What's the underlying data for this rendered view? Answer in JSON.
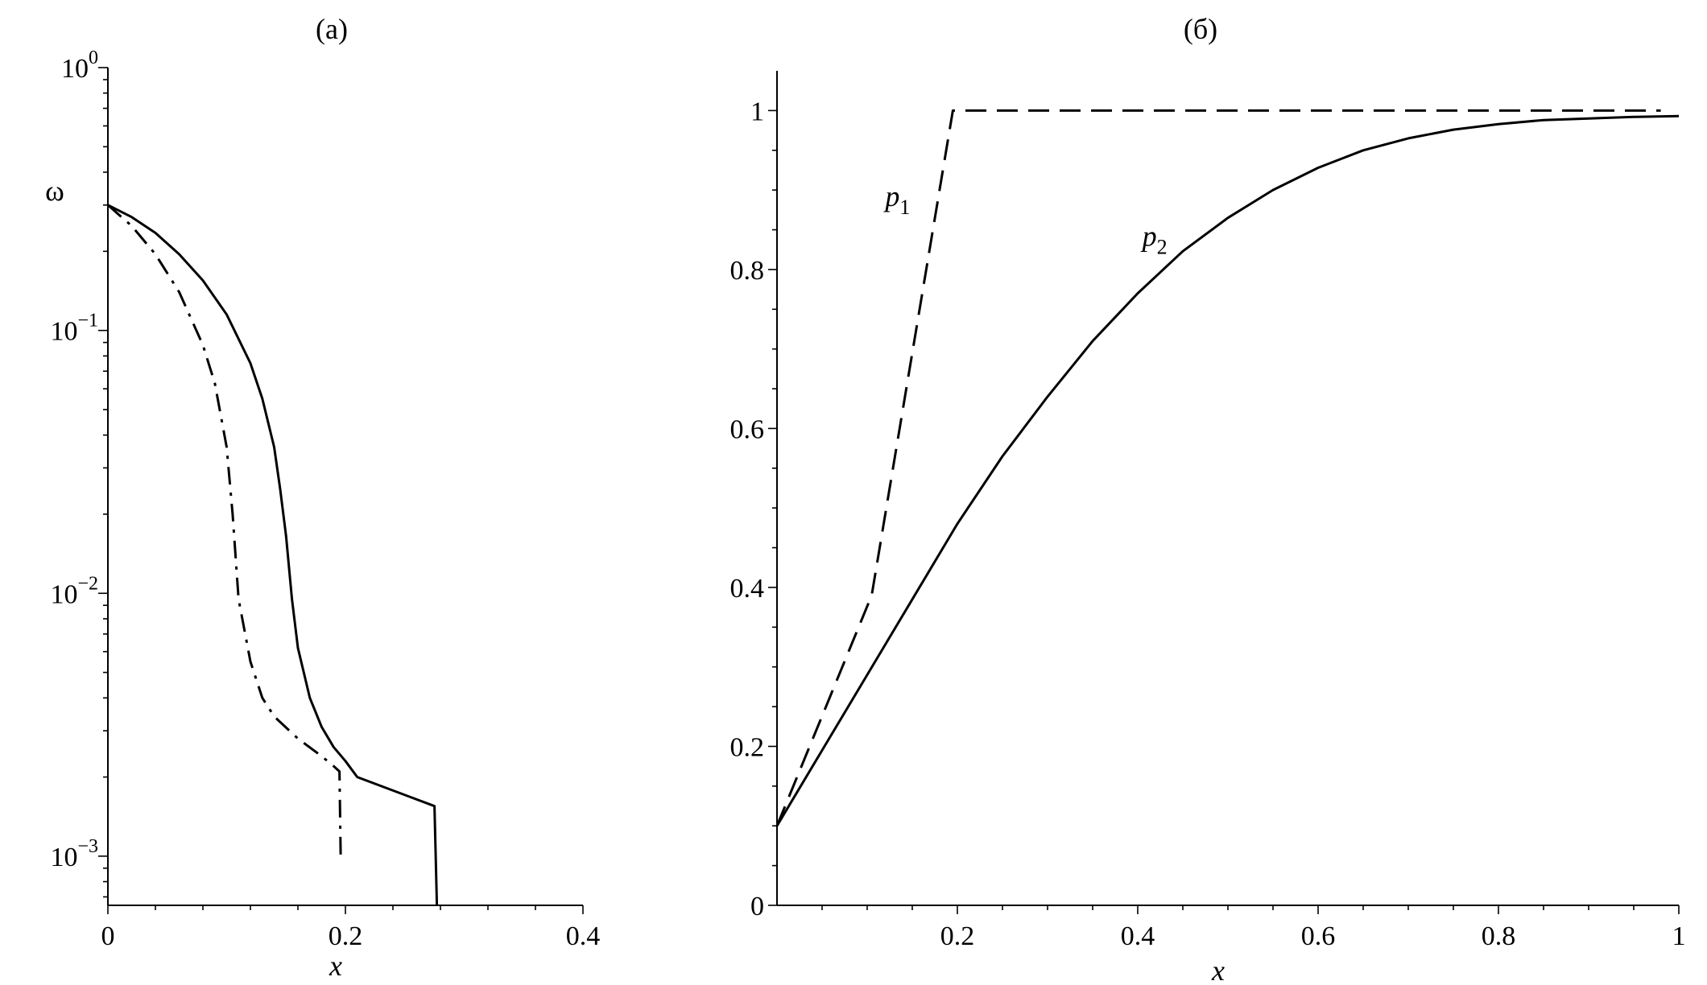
{
  "chart_data": [
    {
      "id": "a",
      "panel_label": "(a)",
      "type": "line",
      "xlabel": "x",
      "ylabel": "ω",
      "yscale": "log",
      "xlim": [
        0,
        0.4
      ],
      "ylim": [
        0.00065,
        1
      ],
      "xticks": [
        {
          "value": 0,
          "label": "0"
        },
        {
          "value": 0.2,
          "label": "0.2"
        },
        {
          "value": 0.4,
          "label": "0.4"
        }
      ],
      "xminor": [
        0.04,
        0.08,
        0.12,
        0.16,
        0.24,
        0.28,
        0.32,
        0.36
      ],
      "yticks": [
        {
          "value": 1,
          "base": "10",
          "exp": "0"
        },
        {
          "value": 0.1,
          "base": "10",
          "exp": "−1"
        },
        {
          "value": 0.01,
          "base": "10",
          "exp": "−2"
        },
        {
          "value": 0.001,
          "base": "10",
          "exp": "−3"
        }
      ],
      "series": [
        {
          "style": "solid",
          "x": [
            0,
            0.02,
            0.04,
            0.06,
            0.08,
            0.1,
            0.12,
            0.13,
            0.14,
            0.145,
            0.15,
            0.155,
            0.16,
            0.17,
            0.18,
            0.19,
            0.2,
            0.21,
            0.275,
            0.277
          ],
          "y": [
            0.3,
            0.27,
            0.235,
            0.195,
            0.155,
            0.115,
            0.075,
            0.055,
            0.036,
            0.025,
            0.0165,
            0.0095,
            0.0062,
            0.004,
            0.0031,
            0.0026,
            0.0023,
            0.002,
            0.00155,
            0.00065
          ]
        },
        {
          "style": "dashdot",
          "x": [
            0,
            0.02,
            0.04,
            0.06,
            0.08,
            0.09,
            0.1,
            0.105,
            0.11,
            0.12,
            0.13,
            0.14,
            0.16,
            0.18,
            0.19,
            0.195,
            0.196
          ],
          "y": [
            0.3,
            0.25,
            0.195,
            0.14,
            0.088,
            0.063,
            0.036,
            0.02,
            0.0095,
            0.0055,
            0.004,
            0.0034,
            0.0028,
            0.0024,
            0.0022,
            0.0021,
            0.001
          ]
        }
      ]
    },
    {
      "id": "b",
      "panel_label": "(б)",
      "type": "line",
      "xlabel": "x",
      "ylabel": "",
      "xlim": [
        0,
        1
      ],
      "ylim": [
        0,
        1.05
      ],
      "xticks": [
        {
          "value": 0.2,
          "label": "0.2"
        },
        {
          "value": 0.4,
          "label": "0.4"
        },
        {
          "value": 0.6,
          "label": "0.6"
        },
        {
          "value": 0.8,
          "label": "0.8"
        },
        {
          "value": 1,
          "label": "1"
        }
      ],
      "xminor": [
        0.05,
        0.1,
        0.15,
        0.25,
        0.3,
        0.35,
        0.45,
        0.5,
        0.55,
        0.65,
        0.7,
        0.75,
        0.85,
        0.9,
        0.95
      ],
      "yticks": [
        {
          "value": 0,
          "label": "0"
        },
        {
          "value": 0.2,
          "label": "0.2"
        },
        {
          "value": 0.4,
          "label": "0.4"
        },
        {
          "value": 0.6,
          "label": "0.6"
        },
        {
          "value": 0.8,
          "label": "0.8"
        },
        {
          "value": 1,
          "label": "1"
        }
      ],
      "yminor": [
        0.05,
        0.1,
        0.15,
        0.25,
        0.3,
        0.35,
        0.45,
        0.5,
        0.55,
        0.65,
        0.7,
        0.75,
        0.85,
        0.9,
        0.95
      ],
      "series": [
        {
          "style": "dashed",
          "label": "p",
          "subscript": "1",
          "label_at": [
            0.12,
            0.88
          ],
          "x": [
            0,
            0.105,
            0.195,
            0.98
          ],
          "y": [
            0.1,
            0.39,
            1.0,
            1.0
          ]
        },
        {
          "style": "solid",
          "label": "p",
          "subscript": "2",
          "label_at": [
            0.405,
            0.83
          ],
          "x": [
            0,
            0.05,
            0.1,
            0.15,
            0.2,
            0.25,
            0.3,
            0.35,
            0.4,
            0.45,
            0.5,
            0.55,
            0.6,
            0.65,
            0.7,
            0.75,
            0.8,
            0.85,
            0.9,
            0.95,
            1.0
          ],
          "y": [
            0.1,
            0.195,
            0.29,
            0.385,
            0.48,
            0.565,
            0.64,
            0.71,
            0.77,
            0.823,
            0.865,
            0.9,
            0.928,
            0.95,
            0.965,
            0.976,
            0.983,
            0.988,
            0.99,
            0.992,
            0.993
          ]
        }
      ]
    }
  ]
}
